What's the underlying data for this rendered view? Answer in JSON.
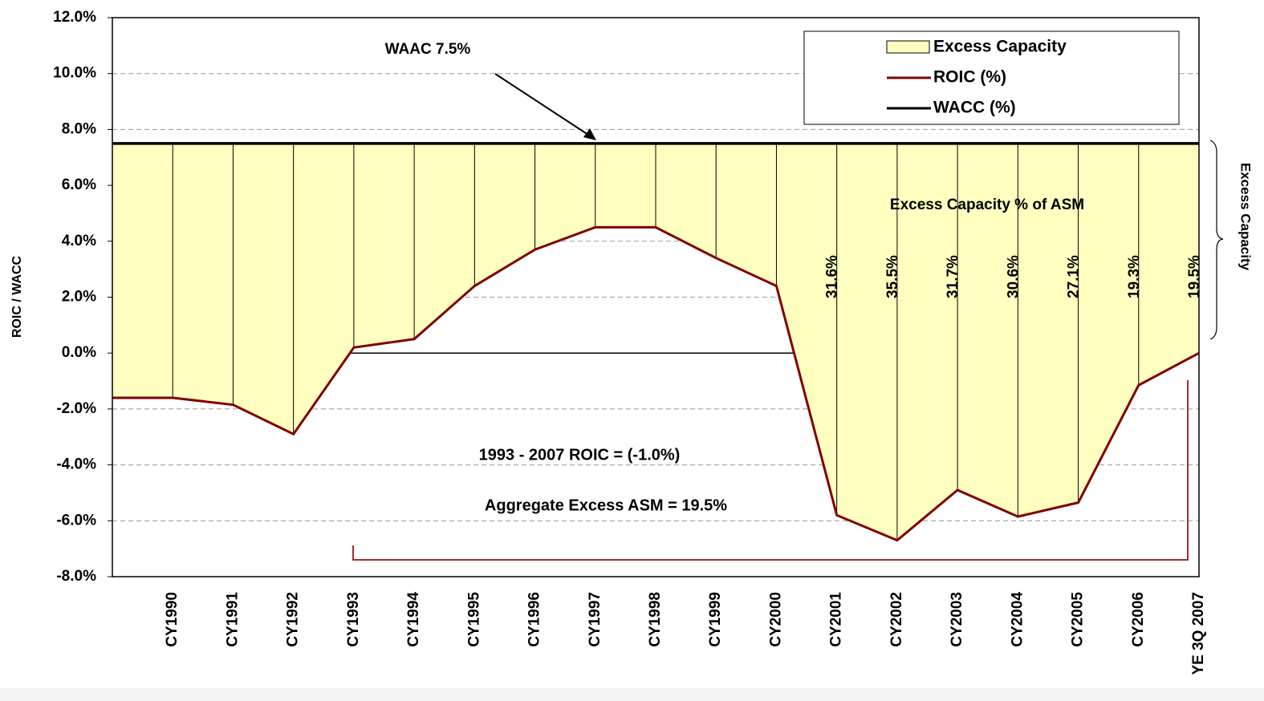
{
  "chart_data": {
    "type": "line",
    "categories": [
      null,
      "CY1990",
      "CY1991",
      "CY1992",
      "CY1993",
      "CY1994",
      "CY1995",
      "CY1996",
      "CY1997",
      "CY1998",
      "CY1999",
      "CY2000",
      "CY2001",
      "CY2002",
      "CY2003",
      "CY2004",
      "CY2005",
      "CY2006",
      "YE 3Q 2007"
    ],
    "series": [
      {
        "name": "ROIC (%)",
        "color": "#800000",
        "values": [
          -1.6,
          -1.6,
          -1.85,
          -2.9,
          0.2,
          0.5,
          2.4,
          3.7,
          4.5,
          4.5,
          3.4,
          2.4,
          -5.8,
          -6.7,
          -4.9,
          -5.85,
          -5.35,
          -1.15,
          0.0
        ]
      },
      {
        "name": "WACC (%)",
        "color": "#000000",
        "values": [
          7.5,
          7.5,
          7.5,
          7.5,
          7.5,
          7.5,
          7.5,
          7.5,
          7.5,
          7.5,
          7.5,
          7.5,
          7.5,
          7.5,
          7.5,
          7.5,
          7.5,
          7.5,
          7.5
        ]
      }
    ],
    "area": {
      "name": "Excess Capacity",
      "color": "#ffffc0"
    },
    "excess_capacity_pct": {
      "values": [
        null,
        null,
        null,
        null,
        null,
        null,
        null,
        null,
        null,
        null,
        null,
        null,
        31.6,
        35.5,
        31.7,
        30.6,
        27.1,
        19.3,
        19.5
      ],
      "value_labels": [
        null,
        null,
        null,
        null,
        null,
        null,
        null,
        null,
        null,
        null,
        null,
        null,
        "31.6%",
        "35.5%",
        "31.7%",
        "30.6%",
        "27.1%",
        "19.3%",
        "19.5%"
      ]
    },
    "y_label": "ROIC / WACC",
    "ylim": [
      -8,
      12
    ],
    "yticks": [
      {
        "value": -8,
        "label": "-8.0%"
      },
      {
        "value": -6,
        "label": "-6.0%"
      },
      {
        "value": -4,
        "label": "-4.0%"
      },
      {
        "value": -2,
        "label": "-2.0%"
      },
      {
        "value": 0,
        "label": "0.0%"
      },
      {
        "value": 2,
        "label": "2.0%"
      },
      {
        "value": 4,
        "label": "4.0%"
      },
      {
        "value": 6,
        "label": "6.0%"
      },
      {
        "value": 8,
        "label": "8.0%"
      },
      {
        "value": 10,
        "label": "10.0%"
      },
      {
        "value": 12,
        "label": "12.0%"
      }
    ],
    "grid": true,
    "legend": "top-right",
    "annotations": [
      "WAAC 7.5%",
      "Excess Capacity % of ASM",
      "1993 - 2007 ROIC = (-1.0%)",
      "Aggregate Excess ASM = 19.5%",
      "Excess Capacity"
    ]
  }
}
